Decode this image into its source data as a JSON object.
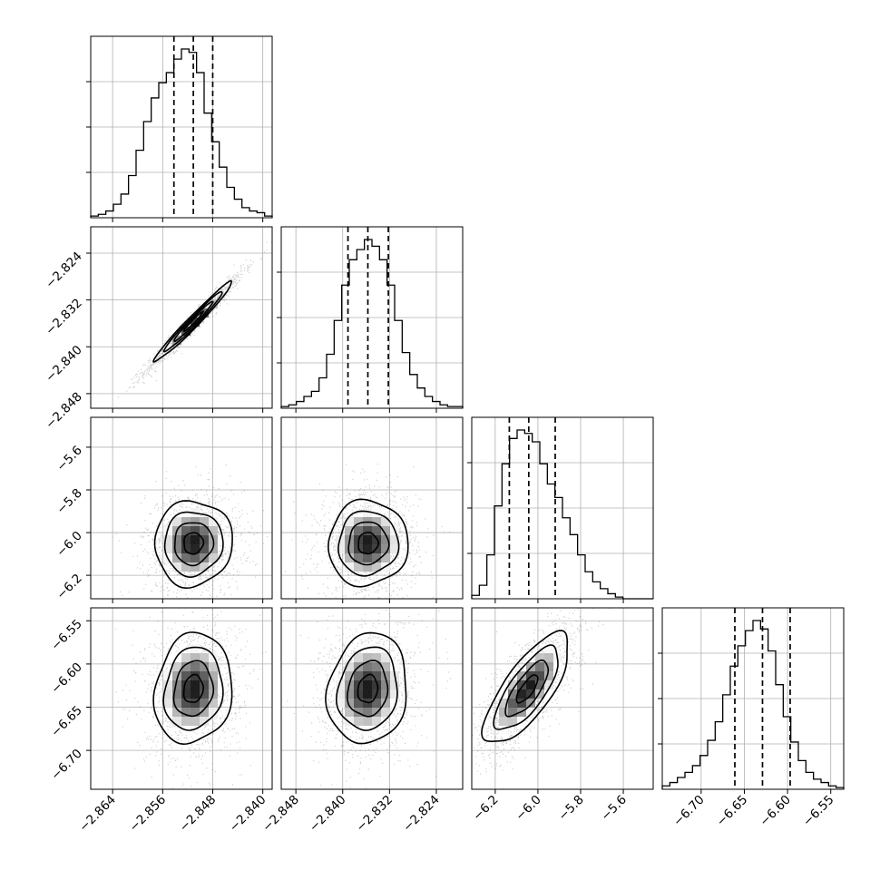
{
  "chart_data": {
    "type": "corner",
    "grid": true,
    "quantile_lines": "dashed",
    "params": [
      {
        "range": [
          -2.8675,
          -2.8385
        ],
        "ticks": [
          -2.864,
          -2.856,
          -2.848,
          -2.84
        ],
        "tick_labels": [
          "−2.864",
          "−2.856",
          "−2.848",
          "−2.840"
        ],
        "quantiles": [
          -2.8542,
          -2.8511,
          -2.848
        ],
        "center": -2.8511,
        "sigma": 0.0031,
        "hist": [
          0.01,
          0.02,
          0.04,
          0.08,
          0.14,
          0.25,
          0.4,
          0.57,
          0.71,
          0.8,
          0.86,
          0.94,
          1.0,
          0.98,
          0.86,
          0.62,
          0.45,
          0.3,
          0.18,
          0.11,
          0.06,
          0.04,
          0.03,
          0.01
        ]
      },
      {
        "range": [
          -2.8505,
          -2.8195
        ],
        "ticks": [
          -2.848,
          -2.84,
          -2.832,
          -2.824
        ],
        "tick_labels": [
          "−2.848",
          "−2.840",
          "−2.832",
          "−2.824"
        ],
        "quantiles": [
          -2.8391,
          -2.8357,
          -2.8322
        ],
        "center": -2.8357,
        "sigma": 0.0034,
        "hist": [
          0.01,
          0.02,
          0.04,
          0.07,
          0.1,
          0.18,
          0.32,
          0.52,
          0.73,
          0.88,
          0.94,
          1.0,
          0.96,
          0.88,
          0.73,
          0.52,
          0.33,
          0.2,
          0.12,
          0.07,
          0.04,
          0.02,
          0.01,
          0.01
        ]
      },
      {
        "range": [
          -6.31,
          -5.46
        ],
        "ticks": [
          -6.2,
          -6.0,
          -5.8,
          -5.6
        ],
        "tick_labels": [
          "−6.2",
          "−6.0",
          "−5.8",
          "−5.6"
        ],
        "quantiles": [
          -6.134,
          -6.043,
          -5.919
        ],
        "center": -6.05,
        "sigma": 0.1,
        "hist": [
          0.02,
          0.08,
          0.26,
          0.55,
          0.8,
          0.95,
          1.0,
          0.98,
          0.93,
          0.8,
          0.68,
          0.6,
          0.48,
          0.38,
          0.26,
          0.16,
          0.1,
          0.06,
          0.03,
          0.01,
          0.0,
          0.0,
          0.0,
          0.0
        ]
      },
      {
        "range": [
          -6.745,
          -6.535
        ],
        "ticks": [
          -6.7,
          -6.65,
          -6.6,
          -6.55
        ],
        "tick_labels": [
          "−6.70",
          "−6.65",
          "−6.60",
          "−6.55"
        ],
        "quantiles": [
          -6.661,
          -6.629,
          -6.597
        ],
        "center": -6.629,
        "sigma": 0.032,
        "hist": [
          0.02,
          0.04,
          0.07,
          0.1,
          0.14,
          0.2,
          0.29,
          0.4,
          0.56,
          0.73,
          0.85,
          0.94,
          1.0,
          0.95,
          0.82,
          0.62,
          0.43,
          0.28,
          0.17,
          0.1,
          0.06,
          0.04,
          0.02,
          0.01
        ]
      }
    ],
    "pairs": [
      {
        "row": 1,
        "col": 0,
        "rho": 0.98
      },
      {
        "row": 2,
        "col": 0,
        "rho": 0.03
      },
      {
        "row": 2,
        "col": 1,
        "rho": 0.03
      },
      {
        "row": 3,
        "col": 0,
        "rho": 0.12
      },
      {
        "row": 3,
        "col": 1,
        "rho": 0.12
      },
      {
        "row": 3,
        "col": 2,
        "rho": 0.75
      }
    ],
    "contour_levels_sigma": [
      0.5,
      1.0,
      1.5,
      2.0
    ]
  }
}
